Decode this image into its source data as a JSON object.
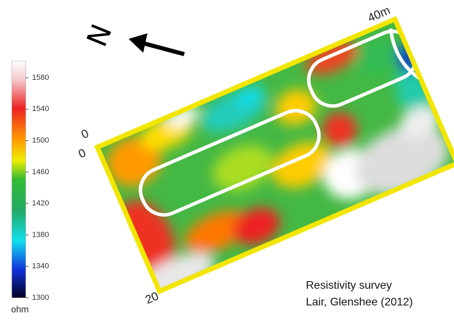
{
  "north_label": "N",
  "colorbar": {
    "ticks": [
      1580,
      1540,
      1500,
      1460,
      1420,
      1380,
      1340,
      1300
    ],
    "unit": "ohm"
  },
  "grid_labels": {
    "origin_a": "0",
    "origin_b": "0",
    "width_end": "20",
    "length_end": "40m"
  },
  "caption": {
    "title": "Resistivity survey",
    "location": "Lair, Glenshee (2012)"
  }
}
